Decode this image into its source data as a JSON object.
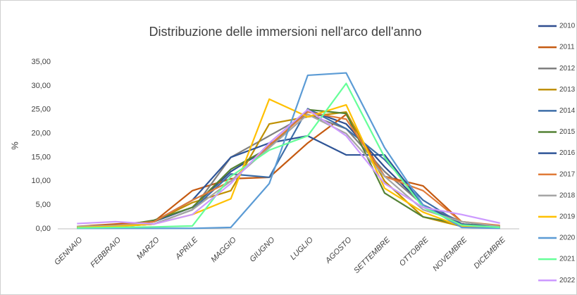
{
  "chart_data": {
    "type": "line",
    "title": "Distribuzione delle immersioni nell'arco dell'anno",
    "y_label": "%",
    "categories": [
      "GENNAIO",
      "FEBBRAIO",
      "MARZO",
      "APRILE",
      "MAGGIO",
      "GIUGNO",
      "LUGLIO",
      "AGOSTO",
      "SETTEMBRE",
      "OTTOBRE",
      "NOVEMBRE",
      "DICEMBRE"
    ],
    "ylim": [
      0,
      35
    ],
    "yticks": [
      {
        "value": 0,
        "label": "0,00"
      },
      {
        "value": 5,
        "label": "5,00"
      },
      {
        "value": 10,
        "label": "10,00"
      },
      {
        "value": 15,
        "label": "15,00"
      },
      {
        "value": 20,
        "label": "20,00"
      },
      {
        "value": 25,
        "label": "25,00"
      },
      {
        "value": 30,
        "label": "30,00"
      },
      {
        "value": 35,
        "label": "35,00"
      }
    ],
    "grid": false,
    "legend": "right",
    "series": [
      {
        "name": "2010",
        "color": "#2f4d8f",
        "values": [
          0.3,
          0.8,
          1.5,
          4.5,
          12,
          17,
          25,
          22,
          13,
          5,
          1,
          0.3
        ]
      },
      {
        "name": "2011",
        "color": "#c55a11",
        "values": [
          0.5,
          1,
          1.5,
          8,
          10.5,
          10.8,
          18,
          24,
          11,
          9,
          1.5,
          0.5
        ]
      },
      {
        "name": "2012",
        "color": "#7f7f7f",
        "values": [
          0.3,
          0.5,
          1,
          4,
          15,
          19.5,
          24,
          21,
          12,
          5,
          1.5,
          0.5
        ]
      },
      {
        "name": "2013",
        "color": "#bf9000",
        "values": [
          0.3,
          0.5,
          1.5,
          5.5,
          8,
          22,
          23.5,
          24.5,
          10,
          2.5,
          0.5,
          0.2
        ]
      },
      {
        "name": "2014",
        "color": "#3d6ea8",
        "values": [
          0.3,
          0.5,
          1,
          4,
          11.5,
          10.8,
          25.2,
          21,
          14.5,
          6,
          1,
          0.3
        ]
      },
      {
        "name": "2015",
        "color": "#548235",
        "values": [
          0.2,
          0.5,
          1.8,
          4.5,
          12.5,
          17,
          25,
          24.2,
          7.5,
          2.5,
          1,
          0.5
        ]
      },
      {
        "name": "2016",
        "color": "#2f5597",
        "values": [
          0.3,
          0.5,
          1.5,
          6,
          15,
          18,
          19.5,
          15.5,
          15.5,
          5,
          1,
          0.3
        ]
      },
      {
        "name": "2017",
        "color": "#e07b39",
        "values": [
          0.4,
          0.7,
          1.5,
          6,
          10,
          17.5,
          24.5,
          23,
          11,
          8,
          1.5,
          0.7
        ]
      },
      {
        "name": "2018",
        "color": "#a5a5a5",
        "values": [
          0.5,
          0.7,
          1,
          4,
          10,
          17,
          24,
          20,
          11,
          4,
          1.5,
          0.5
        ]
      },
      {
        "name": "2019",
        "color": "#ffc000",
        "values": [
          0.3,
          0.5,
          1,
          3,
          6.3,
          27.2,
          23.5,
          26,
          8.5,
          3.5,
          0.5,
          0.3
        ]
      },
      {
        "name": "2020",
        "color": "#5b9bd5",
        "values": [
          0.1,
          0.1,
          0.1,
          0.1,
          0.3,
          9.5,
          32.2,
          32.7,
          17,
          5,
          0.3,
          0.1
        ]
      },
      {
        "name": "2021",
        "color": "#66ff99",
        "values": [
          0.2,
          0.3,
          0.4,
          0.6,
          11,
          16.5,
          19.5,
          30.5,
          15,
          4.5,
          0.8,
          0.3
        ]
      },
      {
        "name": "2022",
        "color": "#cc99ff",
        "values": [
          1.1,
          1.5,
          1,
          3,
          9.5,
          18,
          25,
          19.5,
          9.5,
          4.5,
          3,
          1.2
        ]
      }
    ]
  }
}
